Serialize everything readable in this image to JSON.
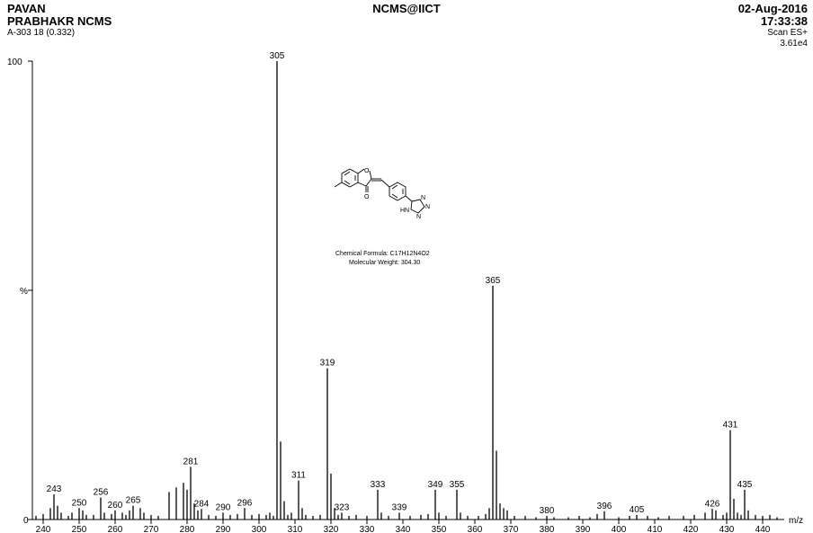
{
  "header": {
    "operator_line1": "PAVAN",
    "operator_line2": "PRABHAKR NCMS",
    "sample": "A-303 18 (0.332)",
    "instrument": "NCMS@IICT",
    "date": "02-Aug-2016",
    "time": "17:33:38",
    "scan_mode": "Scan ES+",
    "max_intensity": "3.61e4"
  },
  "structure": {
    "formula_label": "Chemical Formula: C17H12N4O2",
    "weight_label": "Molecular Weight: 304.30",
    "atom_labels": [
      "O",
      "O",
      "N",
      "N",
      "N",
      "HN"
    ]
  },
  "chart_data": {
    "type": "bar",
    "title": "",
    "xlabel": "m/z",
    "ylabel": "%",
    "xlim": [
      237,
      446
    ],
    "ylim": [
      0,
      100
    ],
    "x_ticks": [
      240,
      250,
      260,
      270,
      280,
      290,
      300,
      310,
      320,
      330,
      340,
      350,
      360,
      370,
      380,
      390,
      400,
      410,
      420,
      430,
      440
    ],
    "y_tick_labels": [
      "100",
      "%",
      "0"
    ],
    "labeled_peaks": [
      {
        "mz": 243,
        "rel": 5.5
      },
      {
        "mz": 250,
        "rel": 2.5
      },
      {
        "mz": 256,
        "rel": 4.8
      },
      {
        "mz": 260,
        "rel": 2.0
      },
      {
        "mz": 265,
        "rel": 3.0
      },
      {
        "mz": 281,
        "rel": 11.5
      },
      {
        "mz": 284,
        "rel": 2.3
      },
      {
        "mz": 290,
        "rel": 1.5
      },
      {
        "mz": 296,
        "rel": 2.5
      },
      {
        "mz": 305,
        "rel": 100
      },
      {
        "mz": 311,
        "rel": 8.5
      },
      {
        "mz": 319,
        "rel": 33
      },
      {
        "mz": 323,
        "rel": 1.5
      },
      {
        "mz": 333,
        "rel": 6.5
      },
      {
        "mz": 339,
        "rel": 1.5
      },
      {
        "mz": 349,
        "rel": 6.5
      },
      {
        "mz": 355,
        "rel": 6.5
      },
      {
        "mz": 365,
        "rel": 51
      },
      {
        "mz": 380,
        "rel": 0.8
      },
      {
        "mz": 396,
        "rel": 1.8
      },
      {
        "mz": 405,
        "rel": 1.0
      },
      {
        "mz": 426,
        "rel": 2.3
      },
      {
        "mz": 431,
        "rel": 19.5
      },
      {
        "mz": 435,
        "rel": 6.5
      }
    ],
    "minor_peaks": [
      {
        "mz": 238,
        "rel": 0.8
      },
      {
        "mz": 240,
        "rel": 1.2
      },
      {
        "mz": 242,
        "rel": 2.5
      },
      {
        "mz": 244,
        "rel": 3.0
      },
      {
        "mz": 245,
        "rel": 1.5
      },
      {
        "mz": 247,
        "rel": 0.8
      },
      {
        "mz": 248,
        "rel": 1.5
      },
      {
        "mz": 251,
        "rel": 2.0
      },
      {
        "mz": 252,
        "rel": 1.0
      },
      {
        "mz": 254,
        "rel": 1.0
      },
      {
        "mz": 257,
        "rel": 1.5
      },
      {
        "mz": 259,
        "rel": 1.2
      },
      {
        "mz": 262,
        "rel": 1.5
      },
      {
        "mz": 263,
        "rel": 1.0
      },
      {
        "mz": 264,
        "rel": 2.0
      },
      {
        "mz": 267,
        "rel": 2.5
      },
      {
        "mz": 268,
        "rel": 1.5
      },
      {
        "mz": 270,
        "rel": 1.0
      },
      {
        "mz": 272,
        "rel": 0.8
      },
      {
        "mz": 275,
        "rel": 6.0
      },
      {
        "mz": 277,
        "rel": 7.0
      },
      {
        "mz": 279,
        "rel": 8.0
      },
      {
        "mz": 280,
        "rel": 6.5
      },
      {
        "mz": 282,
        "rel": 3.5
      },
      {
        "mz": 283,
        "rel": 2.0
      },
      {
        "mz": 286,
        "rel": 1.0
      },
      {
        "mz": 288,
        "rel": 0.8
      },
      {
        "mz": 292,
        "rel": 1.0
      },
      {
        "mz": 294,
        "rel": 1.2
      },
      {
        "mz": 298,
        "rel": 1.0
      },
      {
        "mz": 300,
        "rel": 1.2
      },
      {
        "mz": 302,
        "rel": 1.0
      },
      {
        "mz": 303,
        "rel": 1.5
      },
      {
        "mz": 304,
        "rel": 0.8
      },
      {
        "mz": 306,
        "rel": 17.0
      },
      {
        "mz": 307,
        "rel": 4.0
      },
      {
        "mz": 308,
        "rel": 1.0
      },
      {
        "mz": 309,
        "rel": 1.5
      },
      {
        "mz": 312,
        "rel": 2.5
      },
      {
        "mz": 313,
        "rel": 1.0
      },
      {
        "mz": 315,
        "rel": 0.8
      },
      {
        "mz": 317,
        "rel": 1.0
      },
      {
        "mz": 320,
        "rel": 10.0
      },
      {
        "mz": 321,
        "rel": 2.5
      },
      {
        "mz": 322,
        "rel": 1.0
      },
      {
        "mz": 325,
        "rel": 0.8
      },
      {
        "mz": 327,
        "rel": 1.0
      },
      {
        "mz": 330,
        "rel": 0.8
      },
      {
        "mz": 334,
        "rel": 1.5
      },
      {
        "mz": 336,
        "rel": 0.8
      },
      {
        "mz": 342,
        "rel": 0.8
      },
      {
        "mz": 345,
        "rel": 1.0
      },
      {
        "mz": 347,
        "rel": 1.2
      },
      {
        "mz": 350,
        "rel": 1.5
      },
      {
        "mz": 352,
        "rel": 0.8
      },
      {
        "mz": 356,
        "rel": 1.5
      },
      {
        "mz": 358,
        "rel": 0.8
      },
      {
        "mz": 361,
        "rel": 0.8
      },
      {
        "mz": 363,
        "rel": 1.2
      },
      {
        "mz": 364,
        "rel": 2.5
      },
      {
        "mz": 366,
        "rel": 15.0
      },
      {
        "mz": 367,
        "rel": 3.5
      },
      {
        "mz": 368,
        "rel": 2.5
      },
      {
        "mz": 369,
        "rel": 2.0
      },
      {
        "mz": 371,
        "rel": 0.8
      },
      {
        "mz": 374,
        "rel": 0.8
      },
      {
        "mz": 377,
        "rel": 0.5
      },
      {
        "mz": 382,
        "rel": 0.5
      },
      {
        "mz": 386,
        "rel": 0.5
      },
      {
        "mz": 389,
        "rel": 0.8
      },
      {
        "mz": 392,
        "rel": 0.5
      },
      {
        "mz": 394,
        "rel": 1.2
      },
      {
        "mz": 400,
        "rel": 0.5
      },
      {
        "mz": 403,
        "rel": 0.8
      },
      {
        "mz": 408,
        "rel": 0.8
      },
      {
        "mz": 411,
        "rel": 0.5
      },
      {
        "mz": 414,
        "rel": 0.8
      },
      {
        "mz": 418,
        "rel": 0.8
      },
      {
        "mz": 421,
        "rel": 1.0
      },
      {
        "mz": 424,
        "rel": 1.5
      },
      {
        "mz": 427,
        "rel": 2.0
      },
      {
        "mz": 429,
        "rel": 1.0
      },
      {
        "mz": 430,
        "rel": 1.5
      },
      {
        "mz": 432,
        "rel": 4.5
      },
      {
        "mz": 433,
        "rel": 1.5
      },
      {
        "mz": 434,
        "rel": 1.0
      },
      {
        "mz": 436,
        "rel": 2.0
      },
      {
        "mz": 438,
        "rel": 1.0
      },
      {
        "mz": 440,
        "rel": 0.8
      },
      {
        "mz": 442,
        "rel": 1.0
      },
      {
        "mz": 444,
        "rel": 0.5
      }
    ]
  }
}
